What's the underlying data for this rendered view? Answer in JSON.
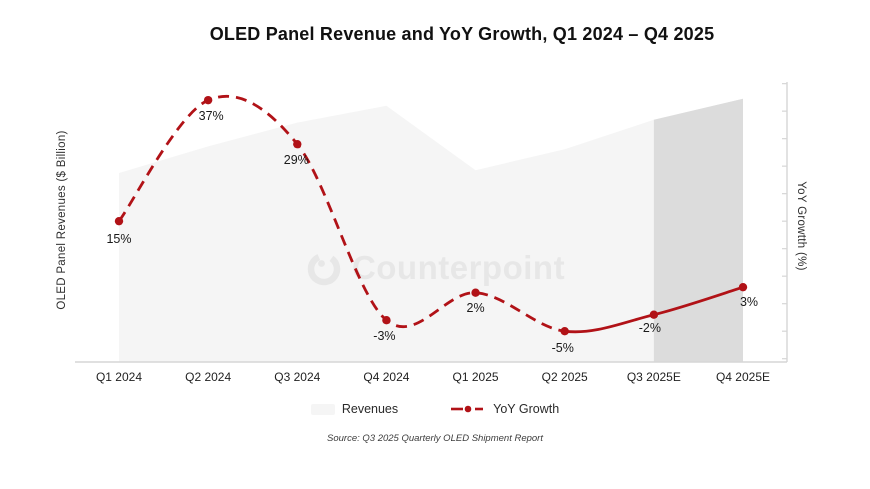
{
  "title": "OLED Panel Revenue and YoY Growth, Q1 2024 – Q4 2025",
  "axes": {
    "left_label": "OLED Panel Revenues ($ Billion)",
    "right_label": "YoY Growtth (%)"
  },
  "legend": [
    {
      "label": "Revenues"
    },
    {
      "label": "YoY Growth"
    }
  ],
  "watermark": "Counterpoint",
  "source": "Source: Q3 2025 Quarterly OLED Shipment Report",
  "colors": {
    "line": "#b11217",
    "area_actual": "#f5f5f5",
    "area_forecast": "#dcdcdc",
    "axis": "#d6d6d6",
    "watermark": "#e7e7e7"
  },
  "chart_data": {
    "type": "combo",
    "categories": [
      "Q1 2024",
      "Q2 2024",
      "Q3 2024",
      "Q4 2024",
      "Q1 2025",
      "Q2 2025",
      "Q3 2025E",
      "Q4 2025E"
    ],
    "series": [
      {
        "name": "Revenues",
        "type": "area",
        "axis": "left",
        "unit": "relative index (left axis shows no numeric ticks)",
        "values": [
          67.5,
          77,
          85.5,
          91.5,
          68.5,
          76,
          86.5,
          94
        ],
        "forecast_from_index": 6,
        "note": "forecast quarters Q3 2025E–Q4 2025E shaded darker"
      },
      {
        "name": "YoY Growth",
        "type": "line",
        "axis": "right",
        "unit": "%",
        "values": [
          15,
          37,
          29,
          -3,
          2,
          -5,
          -2,
          3
        ],
        "labels": [
          "15%",
          "37%",
          "29%",
          "-3%",
          "2%",
          "-5%",
          "-2%",
          "3%"
        ],
        "style": "dashed through Q2 2025, solid for Q3 2025E–Q4 2025E",
        "solid_from_index": 5
      }
    ],
    "xlabel": "",
    "ylabel_left": "OLED Panel Revenues ($ Billion)",
    "ylabel_right": "YoY Growtth (%)",
    "right_ylim": [
      -10.6,
      40.3
    ],
    "right_tick_step": 5,
    "grid": false,
    "legend_position": "bottom"
  }
}
